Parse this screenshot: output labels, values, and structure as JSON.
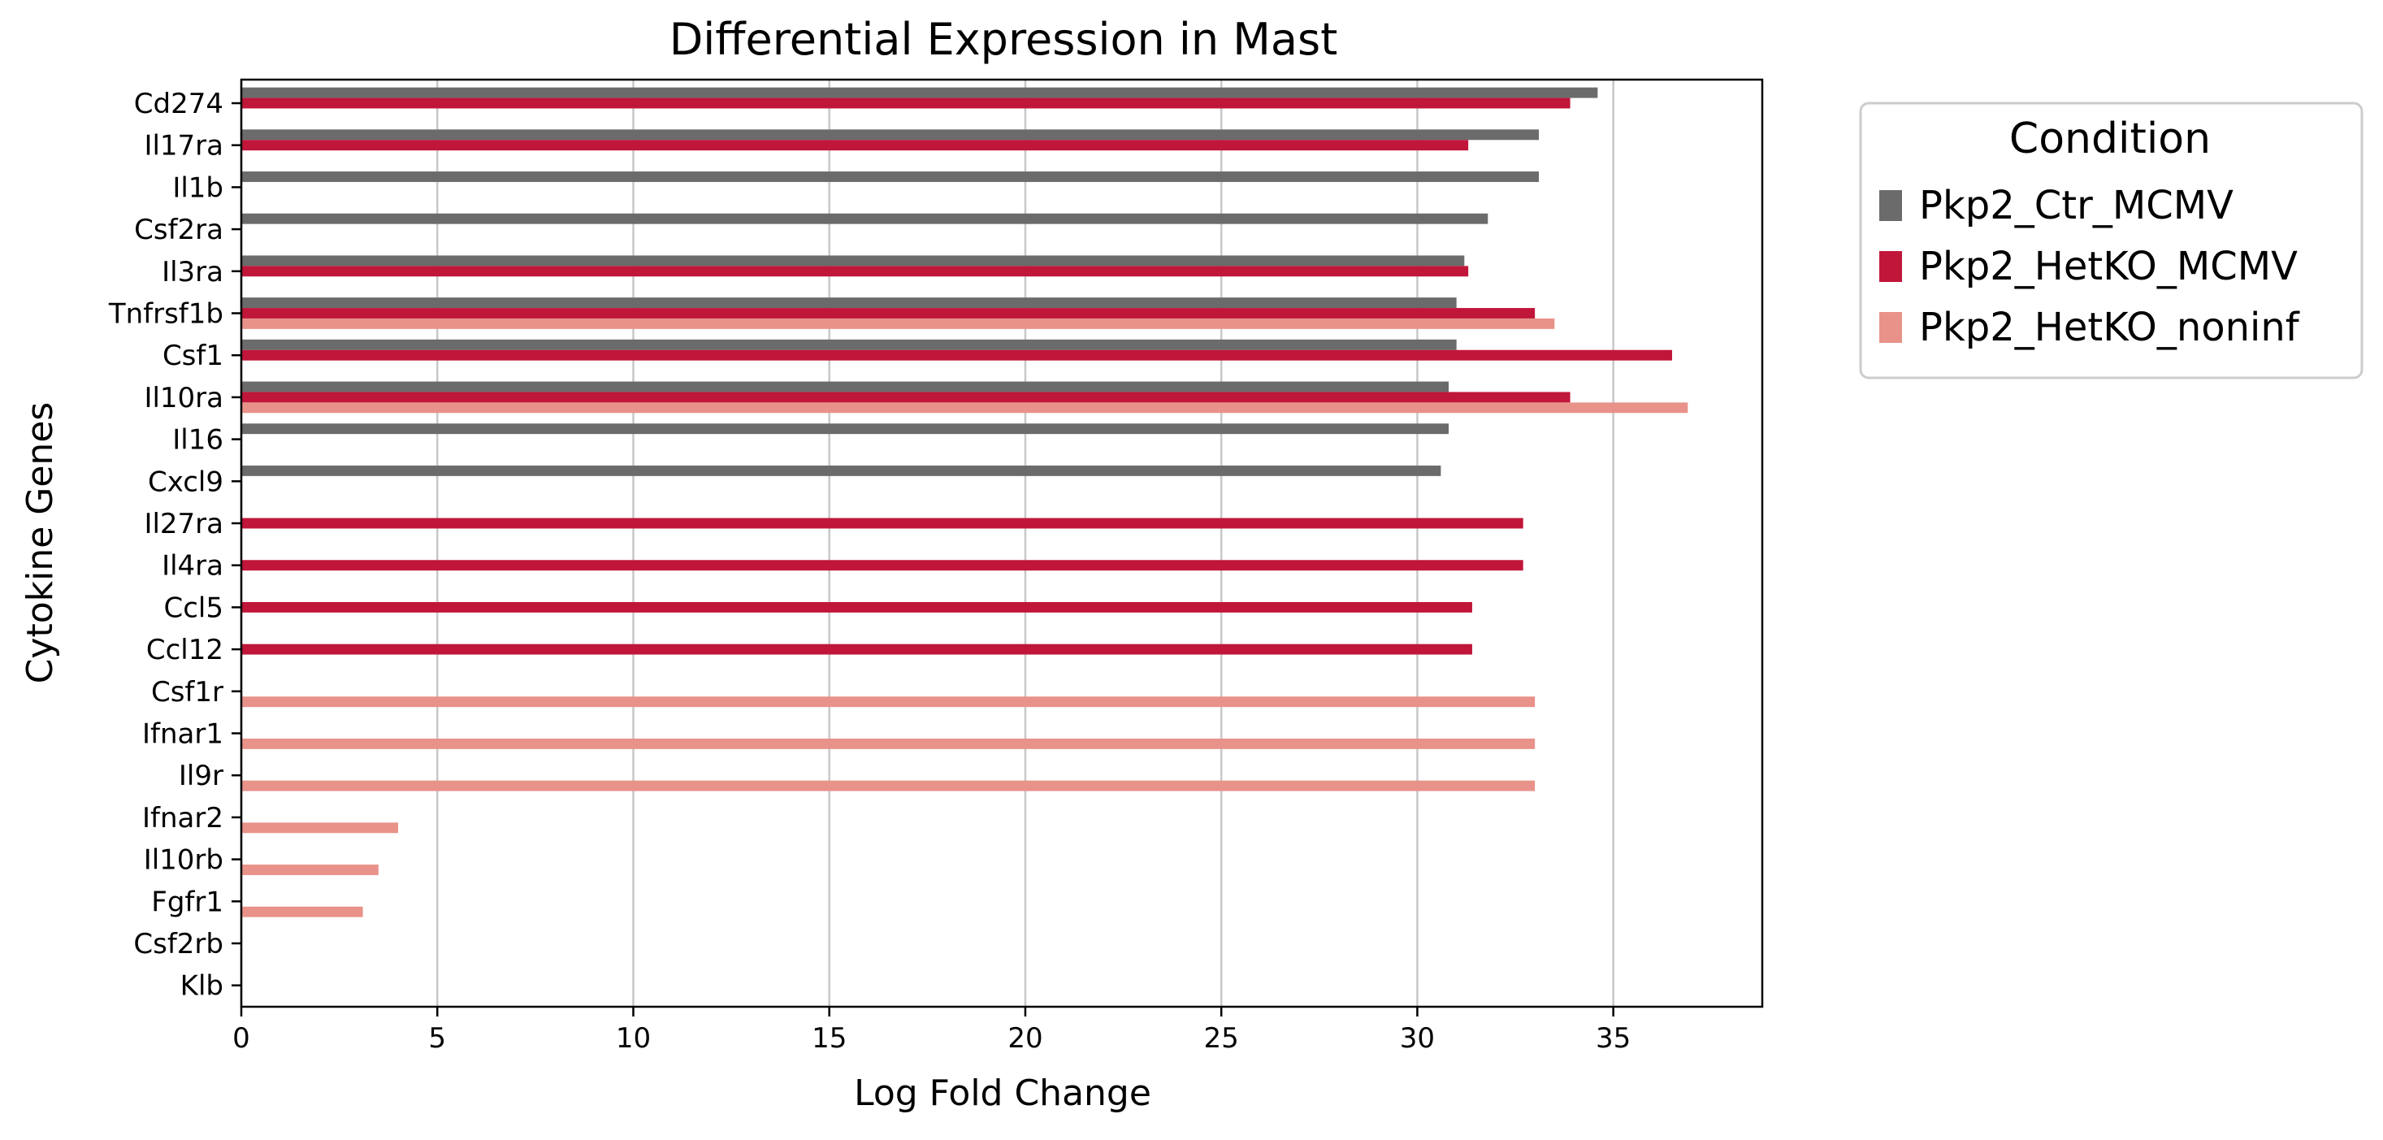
{
  "chart_data": {
    "type": "bar",
    "orientation": "horizontal",
    "title": "Differential Expression in Mast",
    "xlabel": "Log Fold Change",
    "ylabel": "Cytokine Genes",
    "xlim": [
      0,
      38.8
    ],
    "xticks": [
      0,
      5,
      10,
      15,
      20,
      25,
      30,
      35
    ],
    "grid": "x",
    "legend": {
      "title": "Condition",
      "placement": "outside-top-right"
    },
    "categories": [
      "Cd274",
      "Il17ra",
      "Il1b",
      "Csf2ra",
      "Il3ra",
      "Tnfrsf1b",
      "Csf1",
      "Il10ra",
      "Il16",
      "Cxcl9",
      "Il27ra",
      "Il4ra",
      "Ccl5",
      "Ccl12",
      "Csf1r",
      "Ifnar1",
      "Il9r",
      "Ifnar2",
      "Il10rb",
      "Fgfr1",
      "Csf2rb",
      "Klb"
    ],
    "series": [
      {
        "name": "Pkp2_Ctr_MCMV",
        "color": "#6b6b6b",
        "values": [
          34.6,
          33.1,
          33.1,
          31.8,
          31.2,
          31.0,
          31.0,
          30.8,
          30.8,
          30.6,
          null,
          null,
          null,
          null,
          null,
          null,
          null,
          null,
          null,
          null,
          null,
          null
        ]
      },
      {
        "name": "Pkp2_HetKO_MCMV",
        "color": "#c0163a",
        "values": [
          33.9,
          31.3,
          null,
          null,
          31.3,
          33.0,
          36.5,
          33.9,
          null,
          null,
          32.7,
          32.7,
          31.4,
          31.4,
          null,
          null,
          null,
          null,
          null,
          null,
          null,
          null
        ]
      },
      {
        "name": "Pkp2_HetKO_noninf",
        "color": "#e8928a",
        "values": [
          null,
          null,
          null,
          null,
          null,
          33.5,
          null,
          36.9,
          null,
          null,
          null,
          null,
          null,
          null,
          33.0,
          33.0,
          33.0,
          4.0,
          3.5,
          3.1,
          null,
          null
        ]
      }
    ]
  }
}
